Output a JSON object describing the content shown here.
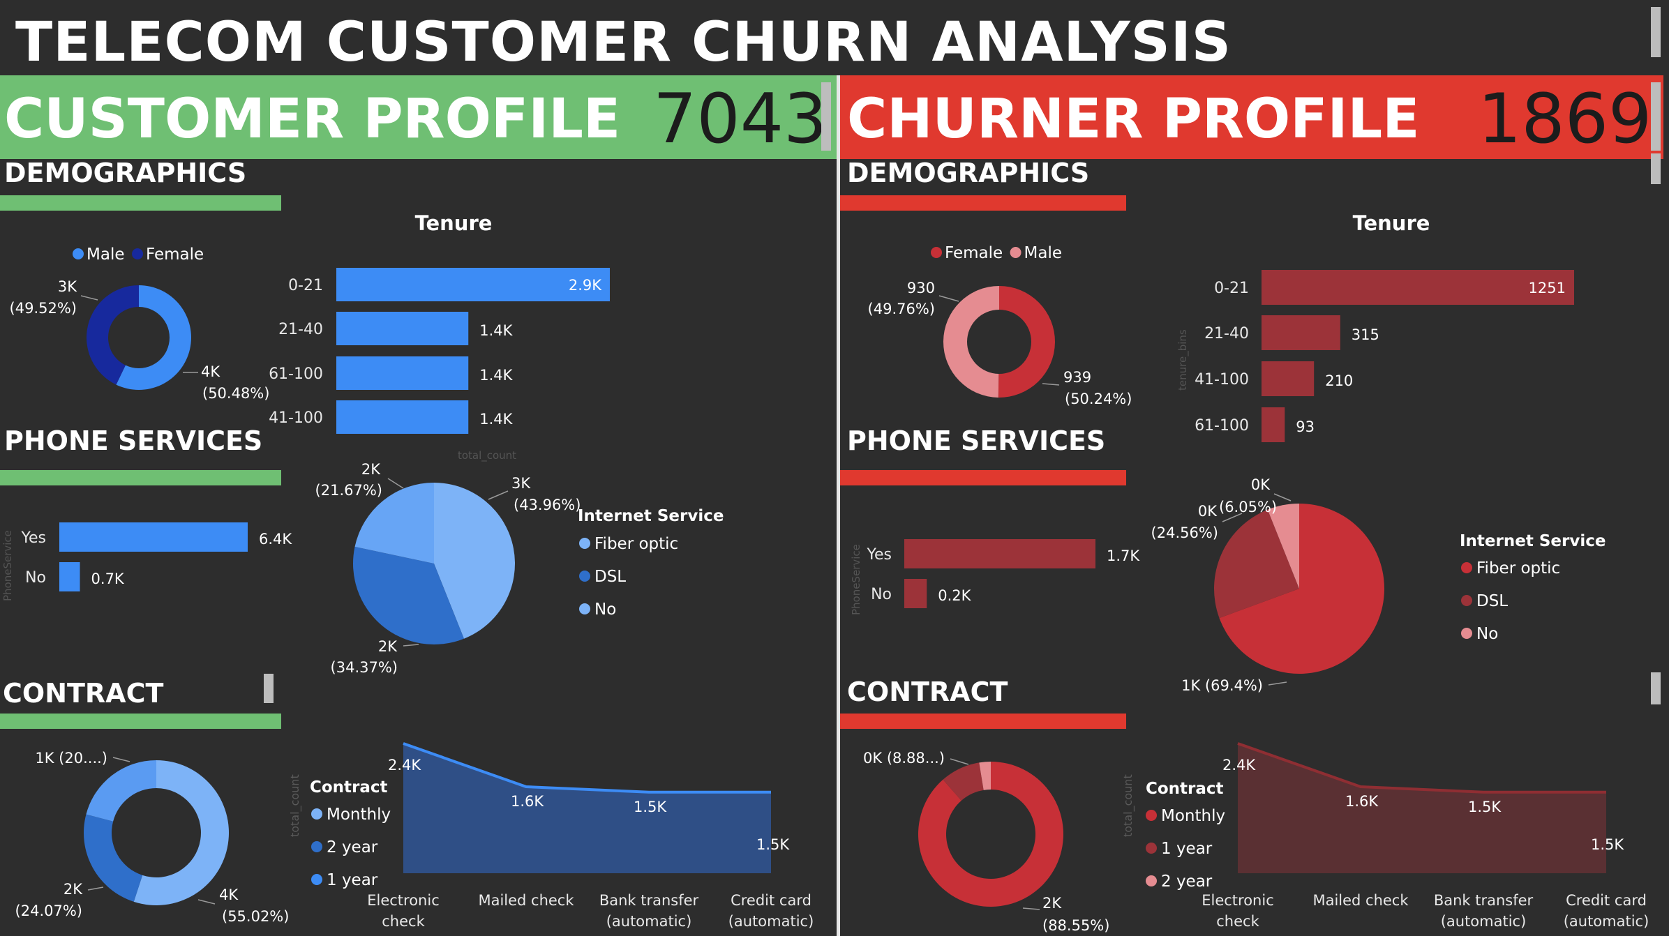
{
  "page": {
    "title": "TELECOM CUSTOMER CHURN ANALYSIS"
  },
  "colors": {
    "background": "#2d2d2d",
    "customer_accent": "#6fbf73",
    "churner_accent": "#e0392f",
    "blue_bar": "#3d8cf5",
    "blue_light": "#7db3f7",
    "blue_mid": "#2f6fca",
    "blue_dark": "#17299d",
    "red_bar": "#9c3339",
    "red_mid": "#c73037",
    "red_light": "#e58c91"
  },
  "customer": {
    "banner_title": "CUSTOMER PROFILE",
    "count": "7043",
    "sections": {
      "demographics": "DEMOGRAPHICS",
      "phone": "PHONE SERVICES",
      "contract": "CONTRACT"
    }
  },
  "churner": {
    "banner_title": "CHURNER PROFILE",
    "count": "1869",
    "sections": {
      "demographics": "DEMOGRAPHICS",
      "phone": "PHONE SERVICES",
      "contract": "CONTRACT"
    }
  },
  "chart_data": [
    {
      "id": "cust_gender",
      "type": "pie",
      "legend": [
        "Male",
        "Female"
      ],
      "slices": [
        {
          "name": "Male",
          "value": 4,
          "label": "4K",
          "pct": "(50.48%)",
          "color": "#3d8cf5"
        },
        {
          "name": "Female",
          "value": 3,
          "label": "3K",
          "pct": "(49.52%)",
          "color": "#17299d"
        }
      ]
    },
    {
      "id": "cust_tenure",
      "type": "bar",
      "title": "Tenure",
      "categories": [
        "0-21",
        "21-40",
        "61-100",
        "41-100"
      ],
      "values": [
        2.9,
        1.4,
        1.4,
        1.4
      ],
      "labels": [
        "2.9K",
        "1.4K",
        "1.4K",
        "1.4K"
      ],
      "axis_label": "total_count",
      "xlim": [
        0,
        2.9
      ]
    },
    {
      "id": "cust_phone",
      "type": "bar",
      "categories": [
        "Yes",
        "No"
      ],
      "values": [
        6.4,
        0.7
      ],
      "labels": [
        "6.4K",
        "0.7K"
      ],
      "axis_label": "PhoneService",
      "xlim": [
        0,
        6.4
      ]
    },
    {
      "id": "cust_internet",
      "type": "pie",
      "legend_title": "Internet Service",
      "legend": [
        "Fiber optic",
        "DSL",
        "No"
      ],
      "slices": [
        {
          "name": "Fiber optic",
          "value": 43.96,
          "label": "3K",
          "pct": "(43.96%)",
          "color": "#7db3f7"
        },
        {
          "name": "DSL",
          "value": 34.37,
          "label": "2K",
          "pct": "(34.37%)",
          "color": "#2f6fca"
        },
        {
          "name": "No",
          "value": 21.67,
          "label": "2K",
          "pct": "(21.67%)",
          "color": "#67a5f5"
        }
      ]
    },
    {
      "id": "cust_contract",
      "type": "pie",
      "legend_title": "Contract",
      "legend": [
        "Monthly",
        "2 year",
        "1 year"
      ],
      "slices": [
        {
          "name": "Monthly",
          "value": 55.02,
          "label": "4K",
          "pct": "(55.02%)",
          "color": "#7db3f7"
        },
        {
          "name": "2 year",
          "value": 24.07,
          "label": "2K",
          "pct": "(24.07%)",
          "color": "#2f6fca"
        },
        {
          "name": "1 year",
          "value": 20.91,
          "label": "1K (20....)",
          "pct": "",
          "color": "#5a9bf2"
        }
      ]
    },
    {
      "id": "cust_payment",
      "type": "area",
      "categories": [
        "Electronic check",
        "Mailed check",
        "Bank transfer (automatic)",
        "Credit card (automatic)"
      ],
      "values": [
        2.4,
        1.6,
        1.5,
        1.5
      ],
      "labels": [
        "2.4K",
        "1.6K",
        "1.5K",
        "1.5K"
      ],
      "ylabel": "total_count",
      "ylim": [
        0,
        2.4
      ]
    },
    {
      "id": "churn_gender",
      "type": "pie",
      "legend": [
        "Female",
        "Male"
      ],
      "slices": [
        {
          "name": "Female",
          "value": 939,
          "label": "939",
          "pct": "(50.24%)",
          "color": "#c73037"
        },
        {
          "name": "Male",
          "value": 930,
          "label": "930",
          "pct": "(49.76%)",
          "color": "#e58c91"
        }
      ]
    },
    {
      "id": "churn_tenure",
      "type": "bar",
      "title": "Tenure",
      "categories": [
        "0-21",
        "21-40",
        "41-100",
        "61-100"
      ],
      "values": [
        1251,
        315,
        210,
        93
      ],
      "labels": [
        "1251",
        "315",
        "210",
        "93"
      ],
      "axis_label": "tenure_bins",
      "xlim": [
        0,
        1251
      ]
    },
    {
      "id": "churn_phone",
      "type": "bar",
      "categories": [
        "Yes",
        "No"
      ],
      "values": [
        1.7,
        0.2
      ],
      "labels": [
        "1.7K",
        "0.2K"
      ],
      "axis_label": "PhoneService",
      "xlim": [
        0,
        1.7
      ]
    },
    {
      "id": "churn_internet",
      "type": "pie",
      "legend_title": "Internet Service",
      "legend": [
        "Fiber optic",
        "DSL",
        "No"
      ],
      "slices": [
        {
          "name": "Fiber optic",
          "value": 69.4,
          "label": "1K (69.4%)",
          "pct": "",
          "color": "#c73037"
        },
        {
          "name": "DSL",
          "value": 24.56,
          "label": "0K",
          "pct": "(24.56%)",
          "color": "#9c3339"
        },
        {
          "name": "No",
          "value": 6.05,
          "label": "0K",
          "pct": "(6.05%)",
          "color": "#e58c91"
        }
      ]
    },
    {
      "id": "churn_contract",
      "type": "pie",
      "legend_title": "Contract",
      "legend": [
        "Monthly",
        "1 year",
        "2 year"
      ],
      "slices": [
        {
          "name": "Monthly",
          "value": 88.55,
          "label": "2K",
          "pct": "(88.55%)",
          "color": "#c73037"
        },
        {
          "name": "1 year",
          "value": 8.88,
          "label": "0K (8.88...)",
          "pct": "",
          "color": "#9c3339"
        },
        {
          "name": "2 year",
          "value": 2.57,
          "label": "",
          "pct": "",
          "color": "#e58c91"
        }
      ]
    },
    {
      "id": "churn_payment",
      "type": "area",
      "categories": [
        "Electronic check",
        "Mailed check",
        "Bank transfer (automatic)",
        "Credit card (automatic)"
      ],
      "values": [
        2.4,
        1.6,
        1.5,
        1.5
      ],
      "labels": [
        "2.4K",
        "1.6K",
        "1.5K",
        "1.5K"
      ],
      "ylabel": "total_count",
      "ylim": [
        0,
        2.4
      ]
    }
  ]
}
